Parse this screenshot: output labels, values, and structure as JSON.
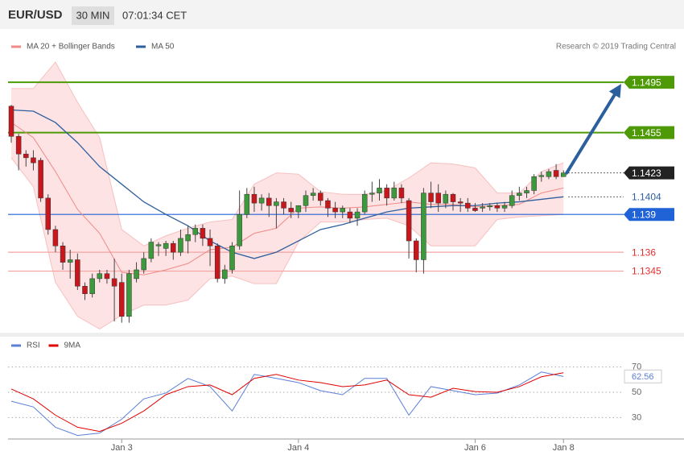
{
  "header": {
    "symbol": "EUR/USD",
    "interval": "30 MIN",
    "time": "07:01:34 CET"
  },
  "chart_data": [
    {
      "type": "candlestick",
      "credit": "Research © 2019 Trading Central",
      "categories": [
        null,
        null,
        null,
        null,
        null,
        null,
        null,
        null,
        null,
        null,
        null,
        null,
        null,
        null,
        null,
        "Jan 3",
        null,
        null,
        null,
        null,
        null,
        null,
        null,
        null,
        null,
        null,
        null,
        null,
        null,
        null,
        null,
        null,
        null,
        null,
        null,
        null,
        null,
        null,
        null,
        "Jan 4",
        null,
        null,
        null,
        null,
        null,
        null,
        null,
        null,
        null,
        null,
        null,
        null,
        null,
        null,
        null,
        null,
        null,
        null,
        null,
        null,
        null,
        null,
        null,
        "Jan 6",
        null,
        null,
        null,
        null,
        null,
        null,
        null,
        null,
        null,
        null,
        null,
        "Jan 8"
      ],
      "open": [
        1.1476,
        1.1452,
        1.1438,
        1.1435,
        1.1433,
        1.1403,
        1.1378,
        1.1365,
        1.1352,
        1.1354,
        1.1333,
        1.1327,
        1.1339,
        1.1343,
        1.1339,
        1.1336,
        1.1309,
        1.1339,
        1.1346,
        1.1355,
        1.1365,
        1.1363,
        1.1367,
        1.136,
        1.1369,
        1.1374,
        1.1379,
        1.1371,
        1.1365,
        1.1339,
        1.1346,
        1.1365,
        1.139,
        1.1406,
        1.1399,
        1.1403,
        1.1397,
        1.14,
        1.1395,
        1.1392,
        1.1397,
        1.1405,
        1.1407,
        1.1401,
        1.1395,
        1.1392,
        1.1392,
        1.1387,
        1.1392,
        1.1406,
        1.1407,
        1.1411,
        1.1403,
        1.1411,
        1.1401,
        1.1369,
        1.1354,
        1.1407,
        1.1407,
        1.1399,
        1.1406,
        1.14,
        1.1399,
        1.1395,
        1.1395,
        1.1396,
        1.1397,
        1.1395,
        1.1397,
        1.1405,
        1.1407,
        1.1409,
        1.142,
        1.142,
        1.1425,
        1.142
      ],
      "high": [
        1.1477,
        1.1454,
        1.1441,
        1.1441,
        1.1435,
        1.1406,
        1.1381,
        1.1368,
        1.1362,
        1.1359,
        1.1336,
        1.1343,
        1.1346,
        1.1346,
        1.1355,
        1.1343,
        1.1346,
        1.1352,
        1.136,
        1.1371,
        1.1368,
        1.1369,
        1.1369,
        1.1378,
        1.1381,
        1.1382,
        1.1382,
        1.1378,
        1.1367,
        1.135,
        1.1368,
        1.1409,
        1.1411,
        1.1412,
        1.1406,
        1.1407,
        1.1403,
        1.1403,
        1.14,
        1.1397,
        1.1409,
        1.1411,
        1.1409,
        1.1403,
        1.14,
        1.1397,
        1.1395,
        1.1395,
        1.1409,
        1.1416,
        1.1418,
        1.1414,
        1.1416,
        1.1414,
        1.1403,
        1.1371,
        1.1411,
        1.1416,
        1.1414,
        1.1409,
        1.1407,
        1.1403,
        1.1403,
        1.1399,
        1.1399,
        1.1399,
        1.1399,
        1.14,
        1.1409,
        1.1412,
        1.1412,
        1.1422,
        1.1424,
        1.1426,
        1.143,
        1.1425
      ],
      "low": [
        1.1447,
        1.1425,
        1.1428,
        1.1425,
        1.14,
        1.1374,
        1.136,
        1.1346,
        1.1339,
        1.133,
        1.1322,
        1.1324,
        1.1336,
        1.1335,
        1.1305,
        1.1304,
        1.1304,
        1.1336,
        1.1343,
        1.1352,
        1.1357,
        1.1357,
        1.1354,
        1.1357,
        1.1359,
        1.1368,
        1.1365,
        1.1349,
        1.1336,
        1.1335,
        1.1343,
        1.1362,
        1.1387,
        1.1392,
        1.1393,
        1.1388,
        1.1379,
        1.139,
        1.1387,
        1.1387,
        1.1392,
        1.1401,
        1.1397,
        1.1388,
        1.1387,
        1.1387,
        1.1383,
        1.1381,
        1.139,
        1.14,
        1.1401,
        1.1397,
        1.1401,
        1.1399,
        1.1355,
        1.1344,
        1.1343,
        1.1395,
        1.1392,
        1.1395,
        1.1393,
        1.1392,
        1.1392,
        1.1392,
        1.1392,
        1.1393,
        1.1392,
        1.1392,
        1.1395,
        1.1401,
        1.1403,
        1.1406,
        1.1416,
        1.1418,
        1.1418,
        1.142
      ],
      "close": [
        1.1452,
        1.1438,
        1.1435,
        1.1431,
        1.1403,
        1.1378,
        1.1365,
        1.1352,
        1.1354,
        1.1333,
        1.1327,
        1.1339,
        1.1343,
        1.1339,
        1.1333,
        1.1309,
        1.1343,
        1.1346,
        1.1355,
        1.1368,
        1.1366,
        1.1367,
        1.136,
        1.1371,
        1.1374,
        1.1379,
        1.1371,
        1.1365,
        1.1339,
        1.1346,
        1.1365,
        1.139,
        1.1406,
        1.1399,
        1.1403,
        1.1397,
        1.14,
        1.1395,
        1.1392,
        1.1397,
        1.1405,
        1.1407,
        1.1401,
        1.1395,
        1.1392,
        1.1395,
        1.1387,
        1.1392,
        1.1406,
        1.1407,
        1.1411,
        1.1403,
        1.1411,
        1.1403,
        1.1369,
        1.1354,
        1.1407,
        1.14,
        1.1399,
        1.1406,
        1.14,
        1.1399,
        1.1395,
        1.1393,
        1.1396,
        1.1397,
        1.1395,
        1.1397,
        1.1405,
        1.1407,
        1.1409,
        1.142,
        1.1421,
        1.1424,
        1.142,
        1.1423
      ],
      "up_color": "#3c9a3c",
      "down_color": "#c8161d",
      "series": [
        {
          "name": "MA 20 + Bollinger Bands",
          "color": "#f08a8a",
          "band_color": "#fde3e3",
          "x": [
            0,
            3,
            6,
            9,
            12,
            15,
            18,
            21,
            24,
            27,
            30,
            33,
            36,
            39,
            42,
            45,
            48,
            51,
            54,
            57,
            60,
            63,
            66,
            69,
            72,
            75
          ],
          "values": [
            1.1463,
            1.1451,
            1.1424,
            1.1394,
            1.1375,
            1.1344,
            1.1342,
            1.1346,
            1.1351,
            1.1362,
            1.1364,
            1.1375,
            1.1379,
            1.1395,
            1.1396,
            1.1395,
            1.1396,
            1.1398,
            1.14,
            1.1398,
            1.1398,
            1.1396,
            1.1397,
            1.1398,
            1.1407,
            1.1411
          ],
          "upper": [
            1.149,
            1.149,
            1.1511,
            1.1479,
            1.1451,
            1.1378,
            1.1365,
            1.1373,
            1.1379,
            1.1384,
            1.1386,
            1.1414,
            1.1423,
            1.1422,
            1.1408,
            1.1406,
            1.1406,
            1.1409,
            1.1419,
            1.1431,
            1.143,
            1.1427,
            1.1407,
            1.1407,
            1.1424,
            1.1431
          ],
          "lower": [
            1.1435,
            1.1412,
            1.1336,
            1.1309,
            1.1299,
            1.131,
            1.1318,
            1.1318,
            1.1322,
            1.1339,
            1.1341,
            1.1335,
            1.1335,
            1.1368,
            1.1384,
            1.1384,
            1.1386,
            1.1387,
            1.1381,
            1.1365,
            1.1365,
            1.1365,
            1.1386,
            1.1388,
            1.1389,
            1.139
          ]
        },
        {
          "name": "MA 50",
          "color": "#2f5f9e",
          "x": [
            0,
            3,
            6,
            9,
            12,
            15,
            18,
            21,
            24,
            27,
            30,
            33,
            36,
            39,
            42,
            45,
            48,
            51,
            54,
            57,
            60,
            63,
            66,
            69,
            72,
            75
          ],
          "values": [
            1.1473,
            1.1472,
            1.1463,
            1.1447,
            1.1428,
            1.1414,
            1.14,
            1.139,
            1.1381,
            1.1369,
            1.136,
            1.1355,
            1.136,
            1.1369,
            1.1378,
            1.1382,
            1.1387,
            1.1392,
            1.1395,
            1.1396,
            1.1397,
            1.1397,
            1.1399,
            1.14,
            1.1402,
            1.1404
          ]
        }
      ],
      "levels": [
        {
          "value": 1.1495,
          "color": "#4e9a06",
          "line": "solid",
          "label_style": "box"
        },
        {
          "value": 1.1455,
          "color": "#4e9a06",
          "line": "solid",
          "label_style": "box"
        },
        {
          "value": 1.1423,
          "color": "#222222",
          "line": "dotted",
          "label_style": "box"
        },
        {
          "value": 1.1404,
          "color": "#2f5f9e",
          "line": "dotted",
          "label_style": "text"
        },
        {
          "value": 1.139,
          "color": "#1f63d6",
          "line": "solid",
          "label_style": "box"
        },
        {
          "value": 1.136,
          "color": "#e03030",
          "line": "solid",
          "label_style": "text"
        },
        {
          "value": 1.1345,
          "color": "#e03030",
          "line": "solid",
          "label_style": "text"
        }
      ],
      "arrow_color": "#2c5f9e",
      "ylim": [
        1.1298,
        1.1536
      ]
    },
    {
      "type": "line",
      "series": [
        {
          "name": "RSI",
          "color": "#5b7fd6",
          "x": [
            0,
            3,
            6,
            9,
            12,
            15,
            18,
            21,
            24,
            27,
            30,
            33,
            36,
            39,
            42,
            45,
            48,
            51,
            54,
            57,
            60,
            63,
            66,
            69,
            72,
            75
          ],
          "values": [
            42.9,
            38.4,
            22.3,
            15.8,
            17.7,
            28.7,
            44.8,
            49.4,
            61,
            54.5,
            35.2,
            64.2,
            61,
            57.7,
            51.3,
            48.1,
            61,
            61,
            31.9,
            54.5,
            51.3,
            48.1,
            49.4,
            55.8,
            66.1,
            62.56
          ]
        },
        {
          "name": "9MA",
          "color": "#e00000",
          "x": [
            0,
            3,
            6,
            9,
            12,
            15,
            18,
            21,
            24,
            27,
            30,
            33,
            36,
            39,
            42,
            45,
            48,
            51,
            54,
            57,
            60,
            63,
            66,
            69,
            72,
            75
          ],
          "values": [
            52.6,
            44.8,
            31.9,
            22.3,
            19,
            25.5,
            35.2,
            48.1,
            54.5,
            55.8,
            48.1,
            61,
            64.2,
            59.7,
            57.7,
            54.5,
            55.8,
            59.7,
            48.1,
            46.1,
            53.2,
            50.6,
            50,
            54.5,
            62.3,
            65.5
          ]
        }
      ],
      "ylim": [
        13,
        80
      ],
      "yticks": [
        30,
        50,
        70
      ],
      "grid": true
    }
  ]
}
